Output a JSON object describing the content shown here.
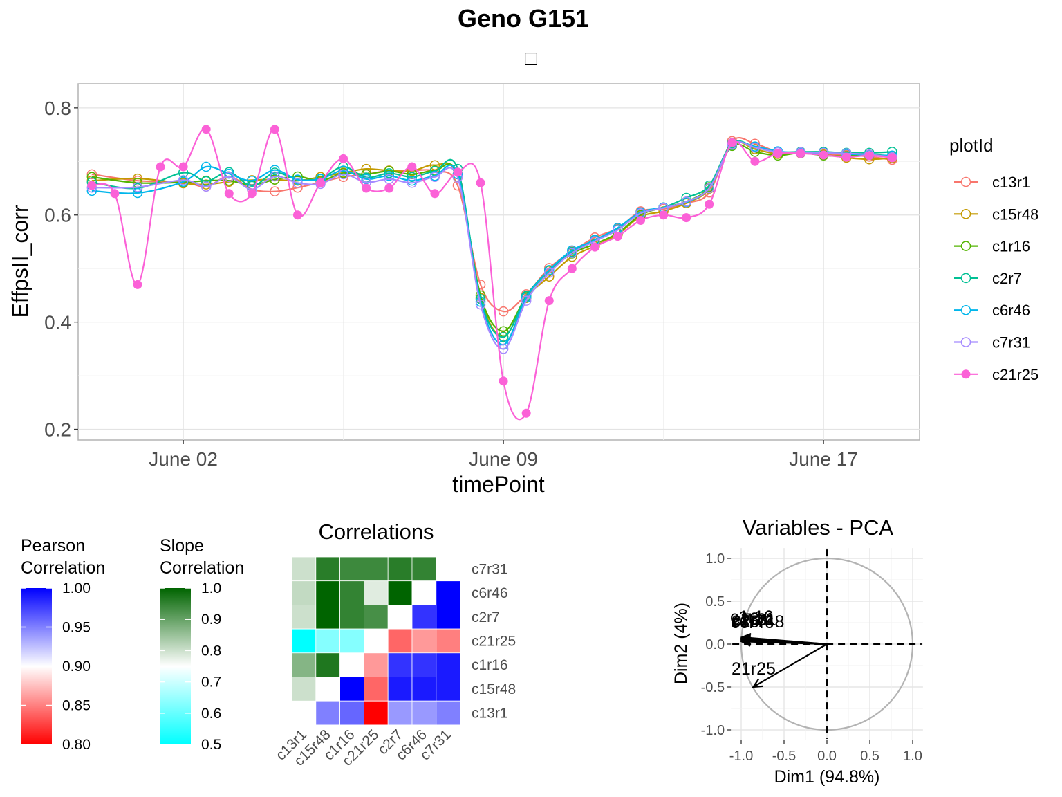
{
  "main_title": "Geno G151",
  "main_subtitle": "□",
  "chart_data": [
    {
      "type": "line",
      "xlabel": "timePoint",
      "ylabel": "EffpsII_corr",
      "x_tick_labels": [
        "June 02",
        "June 09",
        "June 17"
      ],
      "x_tick_days": [
        2,
        9,
        16
      ],
      "xlim_days": [
        -0.3,
        18.1
      ],
      "ylim": [
        0.18,
        0.845
      ],
      "y_ticks": [
        0.2,
        0.4,
        0.6,
        0.8
      ],
      "y_tick_labels": [
        "0.2",
        "0.4",
        "0.6",
        "0.8"
      ],
      "grid": true,
      "legend": {
        "title": "plotId",
        "position": "right",
        "entries": [
          "c13r1",
          "c15r48",
          "c1r16",
          "c2r7",
          "c6r46",
          "c7r31",
          "c21r25"
        ]
      },
      "series": [
        {
          "name": "c13r1",
          "color": "#F8766D",
          "marker": "open",
          "days": [
            0,
            1,
            2,
            2.5,
            3,
            3.5,
            4,
            4.5,
            5,
            5.5,
            6,
            6.5,
            7,
            7.5,
            8,
            8.5,
            9,
            9.5,
            10,
            10.5,
            11,
            11.5,
            12,
            12.5,
            13,
            13.5,
            14,
            14.5,
            15,
            15.5,
            16,
            16.5,
            17,
            17.5
          ],
          "values": [
            0.676,
            0.664,
            0.661,
            0.653,
            0.672,
            0.648,
            0.644,
            0.651,
            0.661,
            0.671,
            0.676,
            0.683,
            0.683,
            0.682,
            0.655,
            0.47,
            0.42,
            0.452,
            0.501,
            0.532,
            0.558,
            0.575,
            0.607,
            0.611,
            0.622,
            0.642,
            0.738,
            0.733,
            0.718,
            0.715,
            0.713,
            0.712,
            0.709,
            0.703
          ]
        },
        {
          "name": "c15r48",
          "color": "#C49A00",
          "marker": "open",
          "days": [
            0,
            1,
            2,
            2.5,
            3,
            3.5,
            4,
            4.5,
            5,
            5.5,
            6,
            6.5,
            7,
            7.5,
            8,
            8.5,
            9,
            9.5,
            10,
            10.5,
            11,
            11.5,
            12,
            12.5,
            13,
            13.5,
            14,
            14.5,
            15,
            15.5,
            16,
            16.5,
            17,
            17.5
          ],
          "values": [
            0.664,
            0.668,
            0.659,
            0.657,
            0.662,
            0.665,
            0.666,
            0.664,
            0.671,
            0.679,
            0.686,
            0.683,
            0.682,
            0.693,
            0.671,
            0.445,
            0.373,
            0.445,
            0.485,
            0.522,
            0.542,
            0.564,
            0.597,
            0.607,
            0.622,
            0.649,
            0.733,
            0.723,
            0.714,
            0.717,
            0.713,
            0.707,
            0.704,
            0.706
          ]
        },
        {
          "name": "c1r16",
          "color": "#53B400",
          "marker": "open",
          "days": [
            0,
            1,
            2,
            2.5,
            3,
            3.5,
            4,
            4.5,
            5,
            5.5,
            6,
            6.5,
            7,
            7.5,
            8,
            8.5,
            9,
            9.5,
            10,
            10.5,
            11,
            11.5,
            12,
            12.5,
            13,
            13.5,
            14,
            14.5,
            15,
            15.5,
            16,
            16.5,
            17,
            17.5
          ],
          "values": [
            0.671,
            0.66,
            0.661,
            0.664,
            0.664,
            0.656,
            0.666,
            0.672,
            0.664,
            0.678,
            0.676,
            0.682,
            0.676,
            0.683,
            0.676,
            0.45,
            0.383,
            0.448,
            0.496,
            0.528,
            0.546,
            0.566,
            0.6,
            0.614,
            0.625,
            0.652,
            0.729,
            0.718,
            0.711,
            0.716,
            0.711,
            0.71,
            0.713,
            0.71
          ]
        },
        {
          "name": "c2r7",
          "color": "#00C094",
          "marker": "open",
          "days": [
            0,
            1,
            2,
            2.5,
            3,
            3.5,
            4,
            4.5,
            5,
            5.5,
            6,
            6.5,
            7,
            7.5,
            8,
            8.5,
            9,
            9.5,
            10,
            10.5,
            11,
            11.5,
            12,
            12.5,
            13,
            13.5,
            14,
            14.5,
            15,
            15.5,
            16,
            16.5,
            17,
            17.5
          ],
          "values": [
            0.661,
            0.65,
            0.679,
            0.663,
            0.68,
            0.654,
            0.679,
            0.666,
            0.668,
            0.69,
            0.67,
            0.678,
            0.671,
            0.682,
            0.686,
            0.443,
            0.372,
            0.449,
            0.497,
            0.531,
            0.554,
            0.573,
            0.603,
            0.614,
            0.632,
            0.655,
            0.734,
            0.727,
            0.718,
            0.718,
            0.718,
            0.716,
            0.716,
            0.718
          ]
        },
        {
          "name": "c6r46",
          "color": "#00B6EB",
          "marker": "open",
          "days": [
            0,
            1,
            2,
            2.5,
            3,
            3.5,
            4,
            4.5,
            5,
            5.5,
            6,
            6.5,
            7,
            7.5,
            8,
            8.5,
            9,
            9.5,
            10,
            10.5,
            11,
            11.5,
            12,
            12.5,
            13,
            13.5,
            14,
            14.5,
            15,
            15.5,
            16,
            16.5,
            17,
            17.5
          ],
          "values": [
            0.645,
            0.641,
            0.662,
            0.69,
            0.677,
            0.664,
            0.684,
            0.666,
            0.667,
            0.683,
            0.667,
            0.673,
            0.664,
            0.673,
            0.676,
            0.438,
            0.358,
            0.446,
            0.497,
            0.534,
            0.553,
            0.576,
            0.605,
            0.614,
            0.624,
            0.65,
            0.731,
            0.728,
            0.719,
            0.716,
            0.716,
            0.714,
            0.712,
            0.711
          ]
        },
        {
          "name": "c7r31",
          "color": "#A58AFF",
          "marker": "open",
          "days": [
            0,
            1,
            2,
            2.5,
            3,
            3.5,
            4,
            4.5,
            5,
            5.5,
            6,
            6.5,
            7,
            7.5,
            8,
            8.5,
            9,
            9.5,
            10,
            10.5,
            11,
            11.5,
            12,
            12.5,
            13,
            13.5,
            14,
            14.5,
            15,
            15.5,
            16,
            16.5,
            17,
            17.5
          ],
          "values": [
            0.651,
            0.652,
            0.665,
            0.653,
            0.671,
            0.648,
            0.672,
            0.66,
            0.658,
            0.676,
            0.661,
            0.667,
            0.66,
            0.671,
            0.67,
            0.433,
            0.35,
            0.44,
            0.492,
            0.529,
            0.551,
            0.572,
            0.603,
            0.613,
            0.625,
            0.65,
            0.732,
            0.726,
            0.717,
            0.717,
            0.716,
            0.715,
            0.713,
            0.708
          ]
        },
        {
          "name": "c21r25",
          "color": "#FB61D7",
          "marker": "filled",
          "days": [
            0,
            0.5,
            1,
            1.5,
            2,
            2.5,
            3,
            3.5,
            4,
            4.5,
            5,
            5.5,
            6,
            6.5,
            7,
            7.5,
            8,
            8.5,
            9,
            9.5,
            10,
            10.5,
            11,
            11.5,
            12,
            12.5,
            13,
            13.5,
            14,
            14.5,
            15,
            15.5,
            16,
            16.5,
            17,
            17.5
          ],
          "values": [
            0.655,
            0.64,
            0.47,
            0.69,
            0.69,
            0.76,
            0.64,
            0.64,
            0.76,
            0.6,
            0.66,
            0.705,
            0.65,
            0.65,
            0.69,
            0.64,
            0.68,
            0.66,
            0.29,
            0.23,
            0.44,
            0.5,
            0.54,
            0.56,
            0.59,
            0.6,
            0.595,
            0.62,
            0.735,
            0.7,
            0.715,
            0.715,
            0.712,
            0.708,
            0.711,
            0.707
          ]
        }
      ]
    },
    {
      "type": "heatmap",
      "title": "Correlations",
      "row_labels": [
        "c7r31",
        "c6r46",
        "c2r7",
        "c21r25",
        "c1r16",
        "c15r48",
        "c13r1"
      ],
      "col_labels": [
        "c13r1",
        "c15r48",
        "c1r16",
        "c21r25",
        "c2r7",
        "c6r46",
        "c7r31"
      ],
      "upper_triangle": "Slope Correlation",
      "lower_triangle": "Pearson Correlation",
      "cells": [
        [
          0.8,
          0.96,
          0.94,
          0.94,
          0.96,
          0.95,
          null
        ],
        [
          0.81,
          1.0,
          0.95,
          0.78,
          1.0,
          null,
          1.0
        ],
        [
          0.8,
          1.0,
          0.95,
          0.93,
          null,
          0.98,
          1.0
        ],
        [
          0.5,
          0.63,
          0.63,
          null,
          0.84,
          0.86,
          0.85
        ],
        [
          0.87,
          0.97,
          null,
          0.86,
          0.98,
          0.98,
          0.99
        ],
        [
          0.8,
          null,
          1.0,
          0.84,
          0.99,
          0.99,
          0.99
        ],
        [
          null,
          0.95,
          0.96,
          0.8,
          0.94,
          0.94,
          0.95
        ]
      ]
    },
    {
      "type": "heatmap_colorbar",
      "title": "Pearson Correlation",
      "title_lines": [
        "Pearson",
        "Correlation"
      ],
      "range": [
        0.8,
        1.0
      ],
      "ticks": [
        "1.00",
        "0.95",
        "0.90",
        "0.85",
        "0.80"
      ],
      "colors": [
        "#FF0000",
        "#FFFFFF",
        "#0000FF"
      ]
    },
    {
      "type": "heatmap_colorbar",
      "title": "Slope Correlation",
      "title_lines": [
        "Slope",
        "Correlation"
      ],
      "range": [
        0.5,
        1.0
      ],
      "ticks": [
        "1.0",
        "0.9",
        "0.8",
        "0.7",
        "0.6",
        "0.5"
      ],
      "colors": [
        "#00FFFF",
        "#FFFFFF",
        "#006400"
      ]
    },
    {
      "type": "scatter",
      "title": "Variables - PCA",
      "xlabel": "Dim1 (94.8%)",
      "ylabel": "Dim2 (4%)",
      "xlim": [
        -1.12,
        1.12
      ],
      "ylim": [
        -1.12,
        1.12
      ],
      "x_ticks": [
        "-1.0",
        "-0.5",
        "0.0",
        "0.5",
        "1.0"
      ],
      "y_ticks": [
        "1.0",
        "0.5",
        "0.0",
        "-0.5",
        "-1.0"
      ],
      "grid": true,
      "vectors": [
        {
          "label": "c13r1",
          "x": -0.99,
          "y": 0.08
        },
        {
          "label": "c15r48",
          "x": -0.995,
          "y": 0.07
        },
        {
          "label": "c1r16",
          "x": -0.995,
          "y": 0.06
        },
        {
          "label": "c2r7",
          "x": -0.993,
          "y": 0.05
        },
        {
          "label": "c6r46",
          "x": -0.996,
          "y": 0.04
        },
        {
          "label": "c7r31",
          "x": -0.994,
          "y": 0.03
        },
        {
          "label": "c21r25",
          "x": -0.86,
          "y": -0.5
        }
      ],
      "visible_vector_labels": [
        "c13r1",
        "c15r48",
        "c1r16",
        "c2r7",
        "c6r46",
        "c7r31",
        "21r25"
      ]
    }
  ]
}
